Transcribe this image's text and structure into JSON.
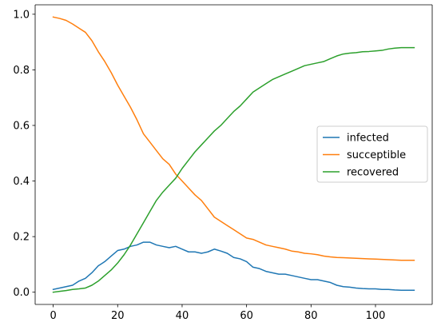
{
  "chart_data": {
    "type": "line",
    "title": "",
    "xlabel": "",
    "ylabel": "",
    "xlim": [
      -5.6,
      117.6
    ],
    "ylim": [
      -0.044,
      1.034
    ],
    "xticks": [
      0,
      20,
      40,
      60,
      80,
      100
    ],
    "yticks": [
      0.0,
      0.2,
      0.4,
      0.6,
      0.8,
      1.0
    ],
    "xtick_labels": [
      "0",
      "20",
      "40",
      "60",
      "80",
      "100"
    ],
    "ytick_labels": [
      "0.0",
      "0.2",
      "0.4",
      "0.6",
      "0.8",
      "1.0"
    ],
    "grid": false,
    "legend_position": "center-right",
    "series": [
      {
        "name": "infected",
        "color": "#1f77b4",
        "x": [
          0,
          2,
          4,
          6,
          8,
          10,
          12,
          14,
          16,
          18,
          20,
          22,
          24,
          26,
          28,
          30,
          32,
          34,
          36,
          38,
          40,
          42,
          44,
          46,
          48,
          50,
          52,
          54,
          56,
          58,
          60,
          62,
          64,
          66,
          68,
          70,
          72,
          74,
          76,
          78,
          80,
          82,
          84,
          86,
          88,
          90,
          92,
          94,
          96,
          98,
          100,
          102,
          104,
          106,
          108,
          110,
          112
        ],
        "y": [
          0.01,
          0.015,
          0.02,
          0.025,
          0.04,
          0.05,
          0.07,
          0.095,
          0.11,
          0.13,
          0.15,
          0.155,
          0.165,
          0.17,
          0.18,
          0.18,
          0.17,
          0.165,
          0.16,
          0.165,
          0.155,
          0.145,
          0.145,
          0.14,
          0.145,
          0.155,
          0.148,
          0.14,
          0.125,
          0.12,
          0.11,
          0.09,
          0.085,
          0.075,
          0.07,
          0.065,
          0.065,
          0.06,
          0.055,
          0.05,
          0.045,
          0.045,
          0.04,
          0.035,
          0.025,
          0.02,
          0.018,
          0.015,
          0.013,
          0.012,
          0.012,
          0.01,
          0.01,
          0.008,
          0.007,
          0.007,
          0.007
        ]
      },
      {
        "name": "succeptible",
        "color": "#ff7f0e",
        "x": [
          0,
          2,
          4,
          6,
          8,
          10,
          12,
          14,
          16,
          18,
          20,
          22,
          24,
          26,
          28,
          30,
          32,
          34,
          36,
          38,
          40,
          42,
          44,
          46,
          48,
          50,
          52,
          54,
          56,
          58,
          60,
          62,
          64,
          66,
          68,
          70,
          72,
          74,
          76,
          78,
          80,
          82,
          84,
          86,
          88,
          90,
          92,
          94,
          96,
          98,
          100,
          102,
          104,
          106,
          108,
          110,
          112
        ],
        "y": [
          0.99,
          0.985,
          0.978,
          0.965,
          0.95,
          0.935,
          0.905,
          0.865,
          0.83,
          0.79,
          0.745,
          0.705,
          0.665,
          0.62,
          0.57,
          0.54,
          0.51,
          0.48,
          0.46,
          0.425,
          0.4,
          0.375,
          0.35,
          0.33,
          0.3,
          0.27,
          0.255,
          0.24,
          0.225,
          0.21,
          0.195,
          0.19,
          0.18,
          0.17,
          0.165,
          0.16,
          0.155,
          0.148,
          0.145,
          0.14,
          0.138,
          0.135,
          0.13,
          0.127,
          0.125,
          0.124,
          0.123,
          0.122,
          0.121,
          0.12,
          0.119,
          0.118,
          0.117,
          0.116,
          0.115,
          0.115,
          0.115
        ]
      },
      {
        "name": "recovered",
        "color": "#2ca02c",
        "x": [
          0,
          2,
          4,
          6,
          8,
          10,
          12,
          14,
          16,
          18,
          20,
          22,
          24,
          26,
          28,
          30,
          32,
          34,
          36,
          38,
          40,
          42,
          44,
          46,
          48,
          50,
          52,
          54,
          56,
          58,
          60,
          62,
          64,
          66,
          68,
          70,
          72,
          74,
          76,
          78,
          80,
          82,
          84,
          86,
          88,
          90,
          92,
          94,
          96,
          98,
          100,
          102,
          104,
          106,
          108,
          110,
          112
        ],
        "y": [
          0.0,
          0.003,
          0.006,
          0.01,
          0.012,
          0.015,
          0.025,
          0.04,
          0.06,
          0.08,
          0.105,
          0.135,
          0.17,
          0.21,
          0.25,
          0.29,
          0.33,
          0.36,
          0.385,
          0.41,
          0.445,
          0.475,
          0.505,
          0.53,
          0.555,
          0.58,
          0.6,
          0.625,
          0.65,
          0.67,
          0.695,
          0.72,
          0.735,
          0.75,
          0.765,
          0.775,
          0.785,
          0.795,
          0.805,
          0.815,
          0.82,
          0.825,
          0.83,
          0.84,
          0.85,
          0.857,
          0.86,
          0.862,
          0.865,
          0.866,
          0.868,
          0.87,
          0.875,
          0.878,
          0.88,
          0.88,
          0.88
        ]
      }
    ]
  }
}
